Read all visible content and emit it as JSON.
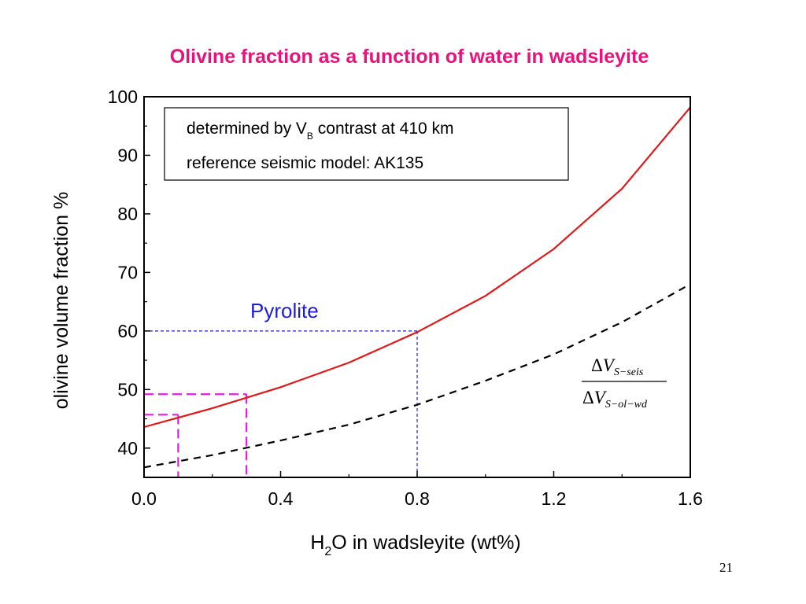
{
  "slide": {
    "title": "Olivine fraction as a function of water in wadsleyite",
    "page_number": "21"
  },
  "colors": {
    "title": "#e8127a",
    "olivine_curve": "#e01818",
    "pyrolite_guide": "#1c1cd9",
    "sample_guides": "#e020e0",
    "ratio_curve": "#000000"
  },
  "chart_data": {
    "type": "line",
    "xlabel_prefix": "H",
    "xlabel_sub": "2",
    "xlabel_suffix": "O in wadsleyite (wt%)",
    "ylabel": "olivine volume fraction %",
    "xlim": [
      0,
      1.6
    ],
    "ylim": [
      35,
      100
    ],
    "xticks": [
      0.0,
      0.4,
      0.8,
      1.2,
      1.6
    ],
    "xtick_labels": [
      "0.0",
      "0.4",
      "0.8",
      "1.2",
      "1.6"
    ],
    "xminor": [
      0.2,
      0.6,
      1.0,
      1.4
    ],
    "yticks": [
      40,
      50,
      60,
      70,
      80,
      90,
      100
    ],
    "ytick_labels": [
      "40",
      "50",
      "60",
      "70",
      "80",
      "90",
      "100"
    ],
    "yminor": [
      45,
      55,
      65,
      75,
      85,
      95
    ],
    "grid": false,
    "legend_box": {
      "line1_prefix": "determined by V",
      "line1_sub": "B",
      "line1_suffix": " contrast at 410 km",
      "line2": "reference seismic model: AK135",
      "placement": "top-left"
    },
    "series": [
      {
        "style": "solid",
        "color": "#e01818",
        "x": [
          0.0,
          0.2,
          0.4,
          0.6,
          0.8,
          1.0,
          1.2,
          1.4,
          1.6
        ],
        "y": [
          43.6,
          46.8,
          50.4,
          54.6,
          59.8,
          66.0,
          74.0,
          84.3,
          98.2
        ]
      },
      {
        "style": "dashed",
        "color": "#000000",
        "x": [
          0.0,
          0.2,
          0.4,
          0.6,
          0.8,
          1.0,
          1.2,
          1.4,
          1.6
        ],
        "y": [
          36.7,
          38.8,
          41.3,
          44.0,
          47.4,
          51.5,
          56.0,
          61.5,
          68.0
        ]
      }
    ],
    "annotations": {
      "pyrolite_label": "Pyrolite",
      "pyrolite": {
        "x": 0.8,
        "y": 60
      },
      "sample_a": {
        "x": 0.3,
        "y": 49.2
      },
      "sample_b": {
        "x": 0.1,
        "y": 45.7
      },
      "ratio_label": {
        "num_delta": "Δ",
        "num_v": "V",
        "num_sub": "S−seis",
        "den_delta": "Δ",
        "den_v": "V",
        "den_sub": "S−ol−wd"
      }
    }
  }
}
